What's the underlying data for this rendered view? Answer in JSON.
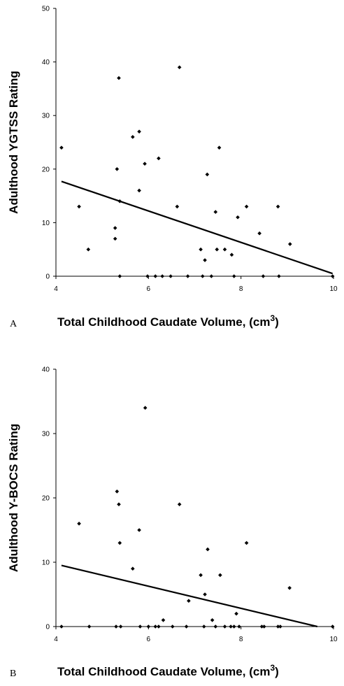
{
  "chart_data": [
    {
      "type": "scatter",
      "panel_label": "A",
      "xlabel": "Total Childhood Caudate Volume, (cm",
      "xlabel_sup": "3",
      "xlabel_end": ")",
      "ylabel": "Adulthood YGTSS Rating",
      "xlim": [
        4,
        10
      ],
      "ylim": [
        0,
        50
      ],
      "xticks": [
        "4",
        "6",
        "8",
        "10"
      ],
      "yticks": [
        "0",
        "10",
        "20",
        "30",
        "40",
        "50"
      ],
      "grid": false,
      "points": [
        [
          4.12,
          24
        ],
        [
          4.5,
          13
        ],
        [
          4.7,
          5
        ],
        [
          5.28,
          9
        ],
        [
          5.28,
          7
        ],
        [
          5.32,
          20
        ],
        [
          5.36,
          37
        ],
        [
          5.38,
          14
        ],
        [
          5.38,
          0
        ],
        [
          5.66,
          26
        ],
        [
          5.8,
          27
        ],
        [
          5.8,
          16
        ],
        [
          5.92,
          21
        ],
        [
          5.98,
          0
        ],
        [
          6.15,
          0
        ],
        [
          6.22,
          22
        ],
        [
          6.3,
          0
        ],
        [
          6.48,
          0
        ],
        [
          6.62,
          13
        ],
        [
          6.67,
          39
        ],
        [
          6.85,
          0
        ],
        [
          7.13,
          5
        ],
        [
          7.17,
          0
        ],
        [
          7.22,
          3
        ],
        [
          7.27,
          19
        ],
        [
          7.36,
          0
        ],
        [
          7.45,
          12
        ],
        [
          7.48,
          5
        ],
        [
          7.53,
          24
        ],
        [
          7.65,
          5
        ],
        [
          7.8,
          4
        ],
        [
          7.85,
          0
        ],
        [
          7.93,
          11
        ],
        [
          8.12,
          13
        ],
        [
          8.4,
          8
        ],
        [
          8.48,
          0
        ],
        [
          8.8,
          13
        ],
        [
          8.82,
          0
        ],
        [
          9.06,
          6
        ],
        [
          9.98,
          0
        ]
      ],
      "trend_line": {
        "x": [
          4.12,
          9.98
        ],
        "y": [
          17.7,
          0.5
        ]
      }
    },
    {
      "type": "scatter",
      "panel_label": "B",
      "xlabel": "Total Childhood Caudate Volume, (cm",
      "xlabel_sup": "3",
      "xlabel_end": ")",
      "ylabel": "Adulthood Y-BOCS Rating",
      "xlim": [
        4,
        10
      ],
      "ylim": [
        0,
        40
      ],
      "xticks": [
        "4",
        "6",
        "8",
        "10"
      ],
      "yticks": [
        "0",
        "10",
        "20",
        "30",
        "40"
      ],
      "grid": false,
      "points": [
        [
          4.12,
          0
        ],
        [
          4.5,
          16
        ],
        [
          4.72,
          0
        ],
        [
          5.3,
          0
        ],
        [
          5.32,
          21
        ],
        [
          5.36,
          19
        ],
        [
          5.38,
          13
        ],
        [
          5.4,
          0
        ],
        [
          5.66,
          9
        ],
        [
          5.8,
          15
        ],
        [
          5.82,
          0
        ],
        [
          5.93,
          34
        ],
        [
          6.0,
          0
        ],
        [
          6.15,
          0
        ],
        [
          6.22,
          0
        ],
        [
          6.32,
          1
        ],
        [
          6.52,
          0
        ],
        [
          6.67,
          19
        ],
        [
          6.82,
          0
        ],
        [
          6.87,
          4
        ],
        [
          7.13,
          8
        ],
        [
          7.2,
          0
        ],
        [
          7.22,
          5
        ],
        [
          7.28,
          12
        ],
        [
          7.38,
          1
        ],
        [
          7.45,
          0
        ],
        [
          7.55,
          8
        ],
        [
          7.65,
          0
        ],
        [
          7.78,
          0
        ],
        [
          7.85,
          0
        ],
        [
          7.9,
          2
        ],
        [
          7.96,
          0
        ],
        [
          8.12,
          13
        ],
        [
          8.45,
          0
        ],
        [
          8.5,
          0
        ],
        [
          8.8,
          0
        ],
        [
          8.85,
          0
        ],
        [
          9.05,
          6
        ],
        [
          9.98,
          0
        ]
      ],
      "trend_line": {
        "x": [
          4.12,
          9.65
        ],
        "y": [
          9.5,
          0
        ]
      }
    }
  ]
}
